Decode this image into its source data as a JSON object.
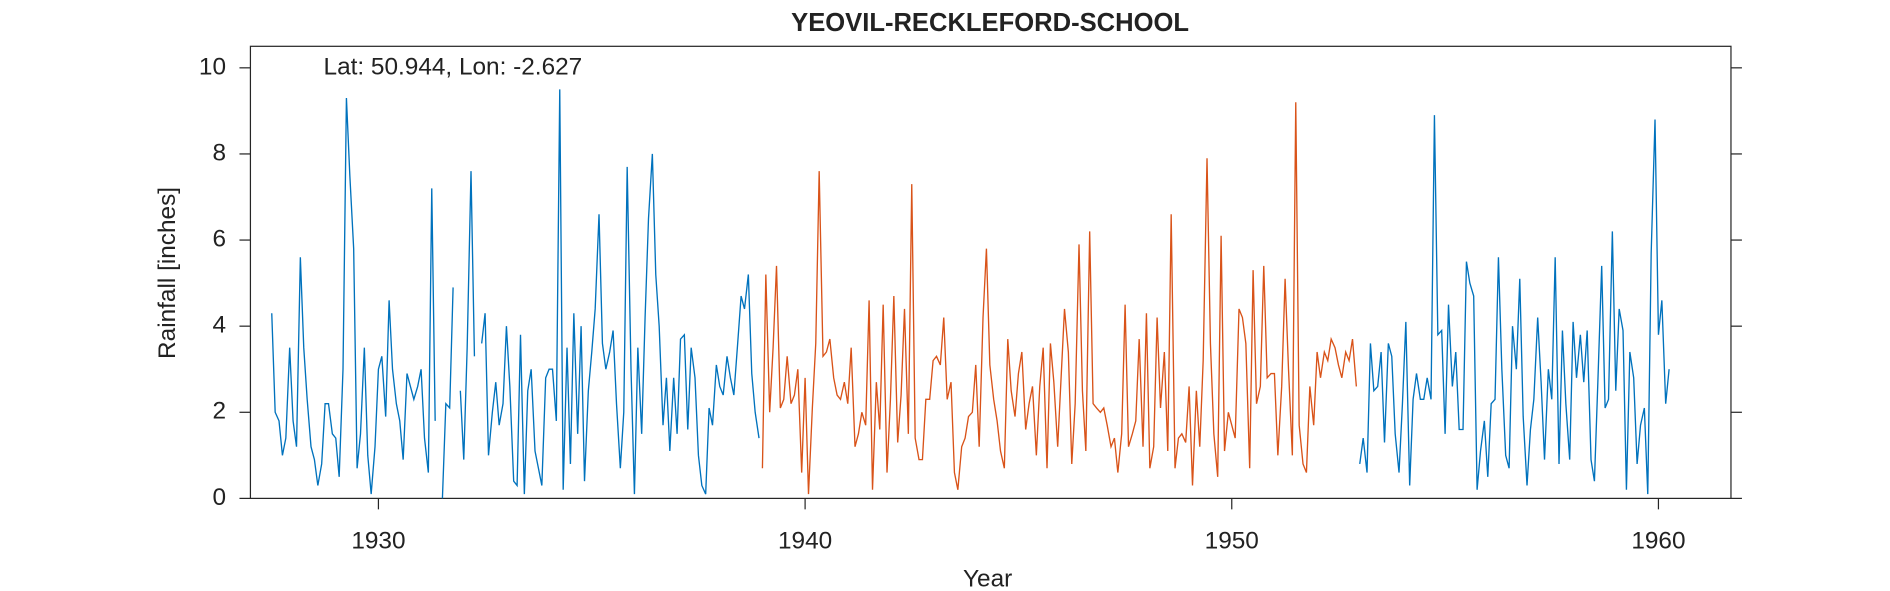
{
  "chart_data": {
    "type": "line",
    "title": "YEOVIL-RECKLEFORD-SCHOOL",
    "annotation": "Lat: 50.944, Lon: -2.627",
    "x_label": "Year",
    "y_label": "Rainfall [inches]",
    "xlim": [
      1927,
      1961.7
    ],
    "xticks": [
      1930,
      1940,
      1950,
      1960
    ],
    "ylim": [
      0,
      10.5
    ],
    "yticks": [
      0,
      2,
      4,
      6,
      8,
      10
    ],
    "grid": false,
    "series": [
      {
        "color": "#0072bd",
        "x": [
          1927.5,
          1927.58,
          1927.67,
          1927.75,
          1927.83,
          1927.92,
          1928,
          1928.08,
          1928.17,
          1928.25,
          1928.33,
          1928.42,
          1928.5,
          1928.58,
          1928.67,
          1928.75,
          1928.83,
          1928.92,
          1929,
          1929.08,
          1929.17,
          1929.25,
          1929.33,
          1929.42,
          1929.5,
          1929.58,
          1929.67,
          1929.75,
          1929.83,
          1929.92,
          1930,
          1930.08,
          1930.17,
          1930.25,
          1930.33,
          1930.42,
          1930.5,
          1930.58,
          1930.67,
          1930.75,
          1930.83,
          1930.92,
          1931,
          1931.08,
          1931.17,
          1931.25,
          1931.33,
          1931.42,
          1931.5,
          1931.58,
          1931.67,
          1931.75,
          1931.83,
          1931.92,
          1932,
          1932.08,
          1932.17,
          1932.25,
          1932.33,
          1932.42,
          1932.5,
          1932.58,
          1932.67,
          1932.75,
          1932.83,
          1932.92,
          1933,
          1933.08,
          1933.17,
          1933.25,
          1933.33,
          1933.42,
          1933.5,
          1933.58,
          1933.67,
          1933.75,
          1933.83,
          1933.92,
          1934,
          1934.08,
          1934.17,
          1934.25,
          1934.33,
          1934.42,
          1934.5,
          1934.58,
          1934.67,
          1934.75,
          1934.83,
          1934.92,
          1935,
          1935.08,
          1935.17,
          1935.25,
          1935.33,
          1935.42,
          1935.5,
          1935.58,
          1935.67,
          1935.75,
          1935.83,
          1935.92,
          1936,
          1936.08,
          1936.17,
          1936.25,
          1936.33,
          1936.42,
          1936.5,
          1936.58,
          1936.67,
          1936.75,
          1936.83,
          1936.92,
          1937,
          1937.08,
          1937.17,
          1937.25,
          1937.33,
          1937.42,
          1937.5,
          1937.58,
          1937.67,
          1937.75,
          1937.83,
          1937.92,
          1938,
          1938.08,
          1938.17,
          1938.25,
          1938.33,
          1938.42,
          1938.5,
          1938.58,
          1938.67,
          1938.75,
          1938.83,
          1938.92
        ],
        "values": [
          4.3,
          2.0,
          1.8,
          1.0,
          1.4,
          3.5,
          1.8,
          1.2,
          5.6,
          3.5,
          2.3,
          1.2,
          0.9,
          0.3,
          0.8,
          2.2,
          2.2,
          1.5,
          1.4,
          0.5,
          3.0,
          9.3,
          7.5,
          5.8,
          0.7,
          1.5,
          3.5,
          1.0,
          0.1,
          1.2,
          3.0,
          3.3,
          1.9,
          4.6,
          3.0,
          2.2,
          1.8,
          0.9,
          2.9,
          2.6,
          2.3,
          2.6,
          3.0,
          1.4,
          0.6,
          7.2,
          1.8,
          null,
          0.0,
          2.2,
          2.1,
          4.9,
          null,
          2.5,
          0.9,
          3.5,
          7.6,
          3.3,
          null,
          3.6,
          4.3,
          1.0,
          2.0,
          2.7,
          1.7,
          2.2,
          4.0,
          2.6,
          0.4,
          0.3,
          3.8,
          0.1,
          2.5,
          3.0,
          1.1,
          0.7,
          0.3,
          2.8,
          3.0,
          3.0,
          1.8,
          9.5,
          0.2,
          3.5,
          0.8,
          4.3,
          1.5,
          4.0,
          0.4,
          2.5,
          3.4,
          4.4,
          6.6,
          3.6,
          3.0,
          3.4,
          3.9,
          2.2,
          0.7,
          2.0,
          7.7,
          3.0,
          0.1,
          3.5,
          1.5,
          4.2,
          6.5,
          8.0,
          5.2,
          4.0,
          1.7,
          2.8,
          1.1,
          2.8,
          1.5,
          3.7,
          3.8,
          1.6,
          3.5,
          2.8,
          1.0,
          0.3,
          0.1,
          2.1,
          1.7,
          3.1,
          2.6,
          2.4,
          3.3,
          2.8,
          2.4,
          3.6,
          4.7,
          4.4,
          5.2,
          2.9,
          2.0,
          1.4
        ]
      },
      {
        "color": "#d95319",
        "x": [
          1939,
          1939.08,
          1939.17,
          1939.25,
          1939.33,
          1939.42,
          1939.5,
          1939.58,
          1939.67,
          1939.75,
          1939.83,
          1939.92,
          1940,
          1940.08,
          1940.17,
          1940.25,
          1940.33,
          1940.42,
          1940.5,
          1940.58,
          1940.67,
          1940.75,
          1940.83,
          1940.92,
          1941,
          1941.08,
          1941.17,
          1941.25,
          1941.33,
          1941.42,
          1941.5,
          1941.58,
          1941.67,
          1941.75,
          1941.83,
          1941.92,
          1942,
          1942.08,
          1942.17,
          1942.25,
          1942.33,
          1942.42,
          1942.5,
          1942.58,
          1942.67,
          1942.75,
          1942.83,
          1942.92,
          1943,
          1943.08,
          1943.17,
          1943.25,
          1943.33,
          1943.42,
          1943.5,
          1943.58,
          1943.67,
          1943.75,
          1943.83,
          1943.92,
          1944,
          1944.08,
          1944.17,
          1944.25,
          1944.33,
          1944.42,
          1944.5,
          1944.58,
          1944.67,
          1944.75,
          1944.83,
          1944.92,
          1945,
          1945.08,
          1945.17,
          1945.25,
          1945.33,
          1945.42,
          1945.5,
          1945.58,
          1945.67,
          1945.75,
          1945.83,
          1945.92,
          1946,
          1946.08,
          1946.17,
          1946.25,
          1946.33,
          1946.42,
          1946.5,
          1946.58,
          1946.67,
          1946.75,
          1946.83,
          1946.92,
          1947,
          1947.08,
          1947.17,
          1947.25,
          1947.33,
          1947.42,
          1947.5,
          1947.58,
          1947.67,
          1947.75,
          1947.83,
          1947.92,
          1948,
          1948.08,
          1948.17,
          1948.25,
          1948.33,
          1948.42,
          1948.5,
          1948.58,
          1948.67,
          1948.75,
          1948.83,
          1948.92,
          1949,
          1949.08,
          1949.17,
          1949.25,
          1949.33,
          1949.42,
          1949.5,
          1949.58,
          1949.67,
          1949.75,
          1949.83,
          1949.92,
          1950,
          1950.08,
          1950.17,
          1950.25,
          1950.33,
          1950.42,
          1950.5,
          1950.58,
          1950.67,
          1950.75,
          1950.83,
          1950.92,
          1951,
          1951.08,
          1951.17,
          1951.25,
          1951.33,
          1951.42,
          1951.5,
          1951.58,
          1951.67,
          1951.75,
          1951.83,
          1951.92,
          1952,
          1952.08,
          1952.17,
          1952.25,
          1952.33,
          1952.42,
          1952.5,
          1952.58,
          1952.67,
          1952.75,
          1952.83,
          1952.92
        ],
        "values": [
          0.7,
          5.2,
          2.0,
          3.5,
          5.4,
          2.1,
          2.3,
          3.3,
          2.2,
          2.4,
          3.0,
          0.6,
          2.8,
          0.1,
          2.1,
          3.6,
          7.6,
          3.3,
          3.4,
          3.7,
          2.8,
          2.4,
          2.3,
          2.7,
          2.2,
          3.5,
          1.2,
          1.5,
          2.0,
          1.7,
          4.6,
          0.2,
          2.7,
          1.6,
          4.5,
          0.6,
          2.3,
          4.7,
          1.3,
          2.4,
          4.4,
          1.5,
          7.3,
          1.4,
          0.9,
          0.9,
          2.3,
          2.3,
          3.2,
          3.3,
          3.1,
          4.2,
          2.3,
          2.7,
          0.6,
          0.2,
          1.2,
          1.4,
          1.9,
          2.0,
          3.1,
          1.2,
          4.2,
          5.8,
          3.1,
          2.3,
          1.8,
          1.1,
          0.7,
          3.7,
          2.5,
          1.9,
          2.9,
          3.4,
          1.6,
          2.2,
          2.6,
          1.0,
          2.6,
          3.5,
          0.7,
          3.6,
          2.7,
          1.2,
          2.8,
          4.4,
          3.4,
          0.8,
          2.2,
          5.9,
          2.5,
          1.1,
          6.2,
          2.2,
          2.1,
          2.0,
          2.1,
          1.7,
          1.2,
          1.4,
          0.6,
          1.5,
          4.5,
          1.2,
          1.5,
          1.8,
          3.7,
          1.2,
          4.3,
          0.7,
          1.2,
          4.2,
          2.1,
          3.4,
          1.1,
          6.6,
          0.7,
          1.4,
          1.5,
          1.3,
          2.6,
          0.3,
          2.5,
          1.2,
          3.2,
          7.9,
          3.6,
          1.5,
          0.5,
          6.1,
          1.1,
          2.0,
          1.7,
          1.4,
          4.4,
          4.2,
          3.6,
          0.7,
          5.3,
          2.2,
          2.6,
          5.4,
          2.8,
          2.9,
          2.9,
          1.0,
          2.6,
          5.1,
          3.0,
          1.0,
          9.2,
          1.7,
          0.8,
          0.6,
          2.6,
          1.7,
          3.4,
          2.8,
          3.4,
          3.2,
          3.7,
          3.5,
          3.1,
          2.8,
          3.4,
          3.2,
          3.7,
          2.6
        ]
      },
      {
        "color": "#0072bd",
        "x": [
          1953,
          1953.08,
          1953.17,
          1953.25,
          1953.33,
          1953.42,
          1953.5,
          1953.58,
          1953.67,
          1953.75,
          1953.83,
          1953.92,
          1954,
          1954.08,
          1954.17,
          1954.25,
          1954.33,
          1954.42,
          1954.5,
          1954.58,
          1954.67,
          1954.75,
          1954.83,
          1954.92,
          1955,
          1955.08,
          1955.17,
          1955.25,
          1955.33,
          1955.42,
          1955.5,
          1955.58,
          1955.67,
          1955.75,
          1955.83,
          1955.92,
          1956,
          1956.08,
          1956.17,
          1956.25,
          1956.33,
          1956.42,
          1956.5,
          1956.58,
          1956.67,
          1956.75,
          1956.83,
          1956.92,
          1957,
          1957.08,
          1957.17,
          1957.25,
          1957.33,
          1957.42,
          1957.5,
          1957.58,
          1957.67,
          1957.75,
          1957.83,
          1957.92,
          1958,
          1958.08,
          1958.17,
          1958.25,
          1958.33,
          1958.42,
          1958.5,
          1958.58,
          1958.67,
          1958.75,
          1958.83,
          1958.92,
          1959,
          1959.08,
          1959.17,
          1959.25,
          1959.33,
          1959.42,
          1959.5,
          1959.58,
          1959.67,
          1959.75,
          1959.83,
          1959.92,
          1960,
          1960.08,
          1960.17,
          1960.25
        ],
        "values": [
          0.8,
          1.4,
          0.6,
          3.6,
          2.5,
          2.6,
          3.4,
          1.3,
          3.6,
          3.3,
          1.5,
          0.6,
          2.2,
          4.1,
          0.3,
          2.3,
          2.9,
          2.3,
          2.3,
          2.8,
          2.3,
          8.9,
          3.8,
          3.9,
          1.5,
          4.5,
          2.6,
          3.4,
          1.6,
          1.6,
          5.5,
          5.0,
          4.7,
          0.2,
          1.1,
          1.8,
          0.5,
          2.2,
          2.3,
          5.6,
          3.0,
          1.0,
          0.7,
          4.0,
          3.0,
          5.1,
          1.9,
          0.3,
          1.6,
          2.3,
          4.2,
          2.7,
          0.9,
          3.0,
          2.3,
          5.6,
          0.8,
          3.9,
          2.2,
          0.9,
          4.1,
          2.8,
          3.8,
          2.7,
          3.9,
          0.9,
          0.4,
          2.7,
          5.4,
          2.1,
          2.3,
          6.2,
          2.5,
          4.4,
          3.9,
          0.2,
          3.4,
          2.8,
          0.8,
          1.7,
          2.1,
          0.1,
          5.7,
          8.8,
          3.8,
          4.6,
          2.2,
          3.0
        ]
      }
    ]
  }
}
